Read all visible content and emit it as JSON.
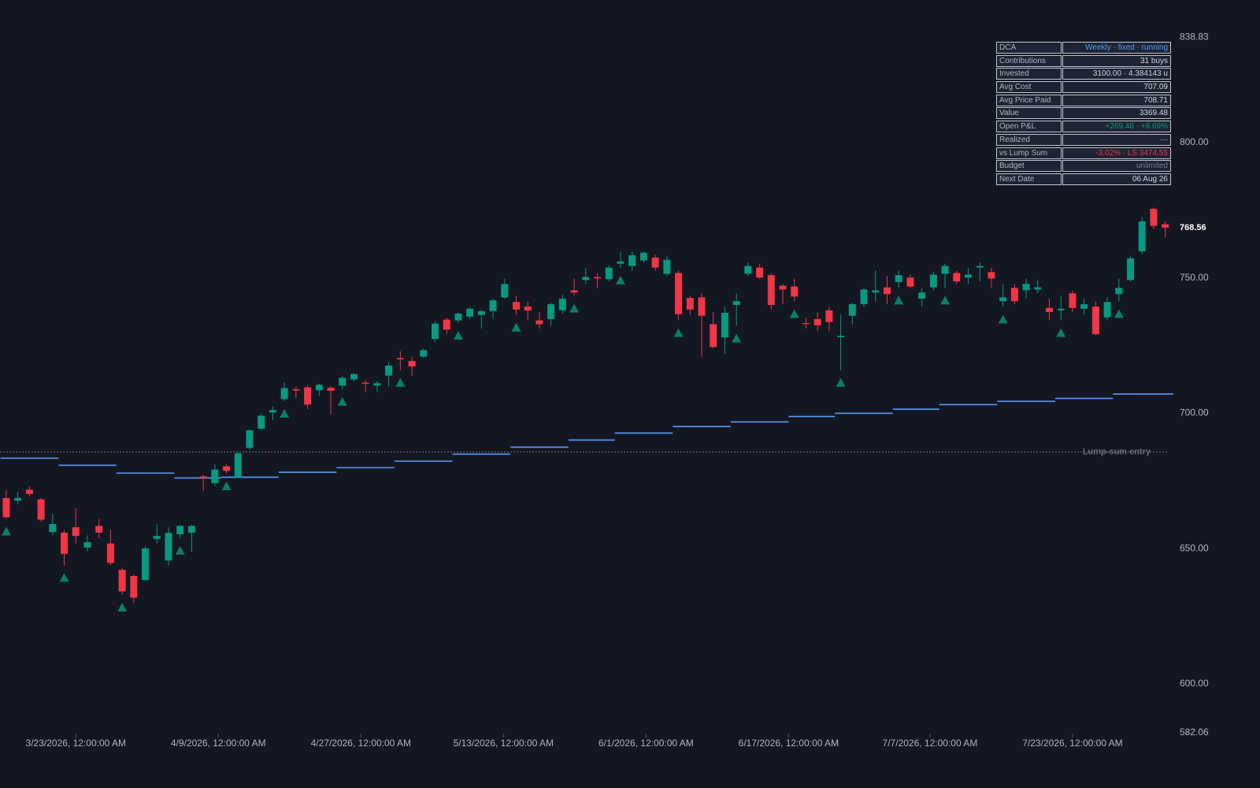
{
  "chart_data": {
    "type": "candlestick",
    "xlim": [
      -0.54,
      100.7
    ],
    "xticks": [
      {
        "value": 6,
        "label": "3/23/2026, 12:00:00 AM"
      },
      {
        "value": 18.3,
        "label": "4/9/2026, 12:00:00 AM"
      },
      {
        "value": 30.6,
        "label": "4/27/2026, 12:00:00 AM"
      },
      {
        "value": 42.9,
        "label": "5/13/2026, 12:00:00 AM"
      },
      {
        "value": 55.2,
        "label": "6/1/2026, 12:00:00 AM"
      },
      {
        "value": 67.5,
        "label": "6/17/2026, 12:00:00 AM"
      },
      {
        "value": 79.7,
        "label": "7/7/2026, 12:00:00 AM"
      },
      {
        "value": 92,
        "label": "7/23/2026, 12:00:00 AM"
      }
    ],
    "ylim": [
      582.06,
      838.83
    ],
    "yticks": [
      582.06,
      {
        "value": 600,
        "label": "600.00"
      },
      {
        "value": 650,
        "label": "650.00"
      },
      {
        "value": 700,
        "label": "700.00"
      },
      {
        "value": 750,
        "label": "750.00"
      },
      {
        "value": 800,
        "label": "800.00"
      },
      838.83
    ],
    "up_color": "#089981",
    "down_color": "#f23645",
    "buy_color": "#0b7d6b",
    "avg_color": "#5b9cf6",
    "open": [
      668.7,
      667.7,
      671.8,
      668.2,
      656.1,
      655.9,
      657.9,
      650.4,
      658.4,
      651.9,
      642.2,
      639.9,
      638.4,
      653.6,
      645.6,
      655.3,
      655.9,
      676.7,
      674.2,
      680.4,
      676.4,
      687.2,
      694.3,
      700.3,
      705.2,
      708.9,
      709.6,
      708.5,
      709.4,
      710.2,
      712.5,
      711.3,
      710.2,
      713.9,
      720.4,
      719.3,
      720.9,
      727.4,
      734.6,
      734.3,
      735.7,
      736.3,
      737.7,
      742.8,
      741.1,
      739.4,
      734.3,
      734.8,
      738.0,
      745.4,
      749.2,
      750.3,
      749.5,
      755.2,
      754.4,
      756.4,
      757.5,
      751.5,
      751.8,
      742.6,
      742.8,
      732.9,
      728.0,
      740.0,
      751.5,
      753.8,
      751.0,
      747.1,
      746.8,
      733.3,
      734.8,
      738.0,
      728.1,
      736.0,
      740.3,
      744.6,
      746.5,
      748.4,
      750.1,
      742.3,
      746.5,
      751.5,
      751.8,
      750.1,
      753.8,
      752.1,
      741.4,
      746.3,
      745.4,
      745.7,
      738.9,
      738.0,
      744.3,
      738.6,
      739.4,
      735.4,
      744.0,
      749.2,
      759.8,
      775.5,
      769.8
    ],
    "high": [
      671.6,
      671.0,
      672.9,
      668.7,
      662.9,
      656.9,
      664.9,
      654.9,
      660.9,
      656.9,
      642.9,
      640.4,
      650.9,
      658.9,
      657.9,
      658.9,
      658.9,
      677.2,
      681.2,
      681.2,
      685.7,
      694.0,
      700.0,
      702.5,
      711.4,
      709.9,
      710.4,
      710.9,
      709.9,
      713.9,
      714.9,
      712.4,
      711.9,
      718.9,
      722.9,
      720.9,
      723.9,
      733.8,
      735.3,
      737.3,
      739.3,
      738.3,
      742.3,
      749.7,
      743.3,
      741.3,
      737.3,
      740.8,
      743.8,
      749.7,
      753.7,
      751.7,
      754.7,
      759.7,
      759.7,
      759.7,
      758.7,
      758.2,
      752.7,
      743.3,
      744.3,
      737.3,
      739.3,
      744.3,
      755.7,
      755.2,
      751.7,
      747.7,
      749.7,
      735.3,
      737.3,
      739.3,
      736.3,
      740.8,
      746.3,
      752.7,
      750.7,
      752.7,
      751.2,
      746.3,
      752.2,
      755.2,
      752.7,
      753.7,
      755.7,
      753.7,
      747.7,
      747.7,
      749.7,
      749.2,
      742.3,
      743.3,
      745.3,
      742.3,
      741.3,
      742.8,
      749.7,
      758.2,
      772.5,
      776.0,
      771.0
    ],
    "low": [
      661.0,
      666.4,
      669.2,
      659.9,
      654.9,
      643.9,
      651.9,
      648.9,
      653.9,
      643.9,
      632.9,
      629.9,
      637.9,
      651.9,
      643.9,
      653.9,
      648.9,
      671.2,
      673.2,
      677.7,
      676.2,
      686.5,
      693.5,
      697.5,
      704.5,
      705.5,
      701.5,
      706.5,
      699.5,
      708.9,
      711.9,
      707.9,
      707.9,
      709.9,
      715.9,
      713.9,
      720.4,
      726.4,
      729.3,
      733.3,
      734.8,
      731.3,
      734.8,
      742.3,
      736.3,
      734.3,
      731.3,
      732.3,
      736.8,
      743.3,
      747.7,
      746.3,
      748.7,
      753.7,
      752.7,
      755.7,
      752.7,
      750.7,
      734.3,
      736.3,
      720.9,
      723.9,
      721.9,
      732.3,
      750.7,
      749.7,
      738.3,
      740.3,
      741.3,
      731.3,
      730.3,
      730.3,
      715.9,
      732.8,
      739.3,
      741.3,
      740.3,
      746.3,
      746.3,
      739.3,
      745.3,
      746.3,
      747.7,
      747.7,
      748.7,
      746.3,
      739.3,
      740.3,
      742.3,
      744.3,
      734.3,
      734.3,
      737.3,
      736.3,
      728.8,
      734.3,
      741.3,
      748.7,
      758.7,
      768.0,
      765.0
    ],
    "close": [
      661.6,
      668.7,
      670.2,
      660.7,
      659.1,
      648.1,
      654.7,
      652.4,
      655.9,
      644.7,
      634.2,
      631.9,
      650.1,
      654.7,
      655.8,
      658.4,
      658.4,
      676.1,
      679.2,
      678.7,
      685.2,
      693.7,
      699.1,
      701.2,
      709.3,
      708.4,
      703.2,
      710.5,
      708.3,
      713.1,
      714.5,
      710.9,
      711.1,
      717.6,
      719.9,
      717.3,
      723.3,
      733.1,
      730.9,
      736.8,
      738.6,
      737.7,
      741.7,
      747.7,
      738.3,
      738.0,
      732.9,
      740.3,
      742.3,
      744.6,
      750.3,
      749.8,
      753.8,
      756.1,
      758.4,
      759.3,
      753.8,
      756.7,
      736.6,
      738.3,
      736.0,
      724.5,
      737.1,
      741.4,
      754.4,
      750.1,
      740.0,
      745.7,
      743.1,
      732.9,
      732.5,
      733.7,
      728.6,
      740.3,
      745.7,
      745.4,
      744.0,
      751.0,
      746.8,
      744.6,
      751.2,
      754.4,
      748.7,
      751.2,
      754.4,
      749.8,
      742.8,
      741.4,
      747.8,
      746.5,
      737.4,
      738.6,
      738.9,
      740.3,
      729.2,
      741.1,
      746.3,
      757.2,
      770.9,
      769.2,
      768.56
    ],
    "buys": [
      0,
      5,
      10,
      15,
      19,
      24,
      29,
      34,
      39,
      44,
      49,
      53,
      58,
      63,
      68,
      72,
      77,
      81,
      86,
      91,
      96
    ],
    "avg_cost": [
      683.4,
      680.8,
      677.9,
      676.1,
      676.4,
      678.2,
      679.9,
      682.3,
      684.9,
      687.5,
      690.1,
      692.7,
      695.1,
      696.8,
      698.8,
      700.0,
      701.5,
      703.2,
      704.4,
      705.5,
      707.09
    ],
    "lump_sum": {
      "label": "Lump-sum entry",
      "value": 685.71
    }
  },
  "table": {
    "rows": [
      [
        "DCA",
        "Weekly · fixed · running"
      ],
      [
        "Contributions",
        "31 buys"
      ],
      [
        "Invested",
        "3100.00 · 4.384143 u"
      ],
      [
        "Avg Cost",
        "707.09"
      ],
      [
        "Avg Price Paid",
        "708.71"
      ],
      [
        "Value",
        "3369.48"
      ],
      [
        "Open P&L",
        "+269.48 · +8.69%"
      ],
      [
        "Realized",
        "—"
      ],
      [
        "vs Lump Sum",
        "-3.02% · LS 3474.55"
      ],
      [
        "Budget",
        "unlimited"
      ],
      [
        "Next Date",
        "06 Aug 26"
      ]
    ],
    "value_colors": [
      "#5b9cf6",
      "#d1d4dc",
      "#d1d4dc",
      "#d1d4dc",
      "#d1d4dc",
      "#d1d4dc",
      "#089981",
      "#787b86",
      "#f23645",
      "#787b86",
      "#d1d4dc"
    ]
  }
}
